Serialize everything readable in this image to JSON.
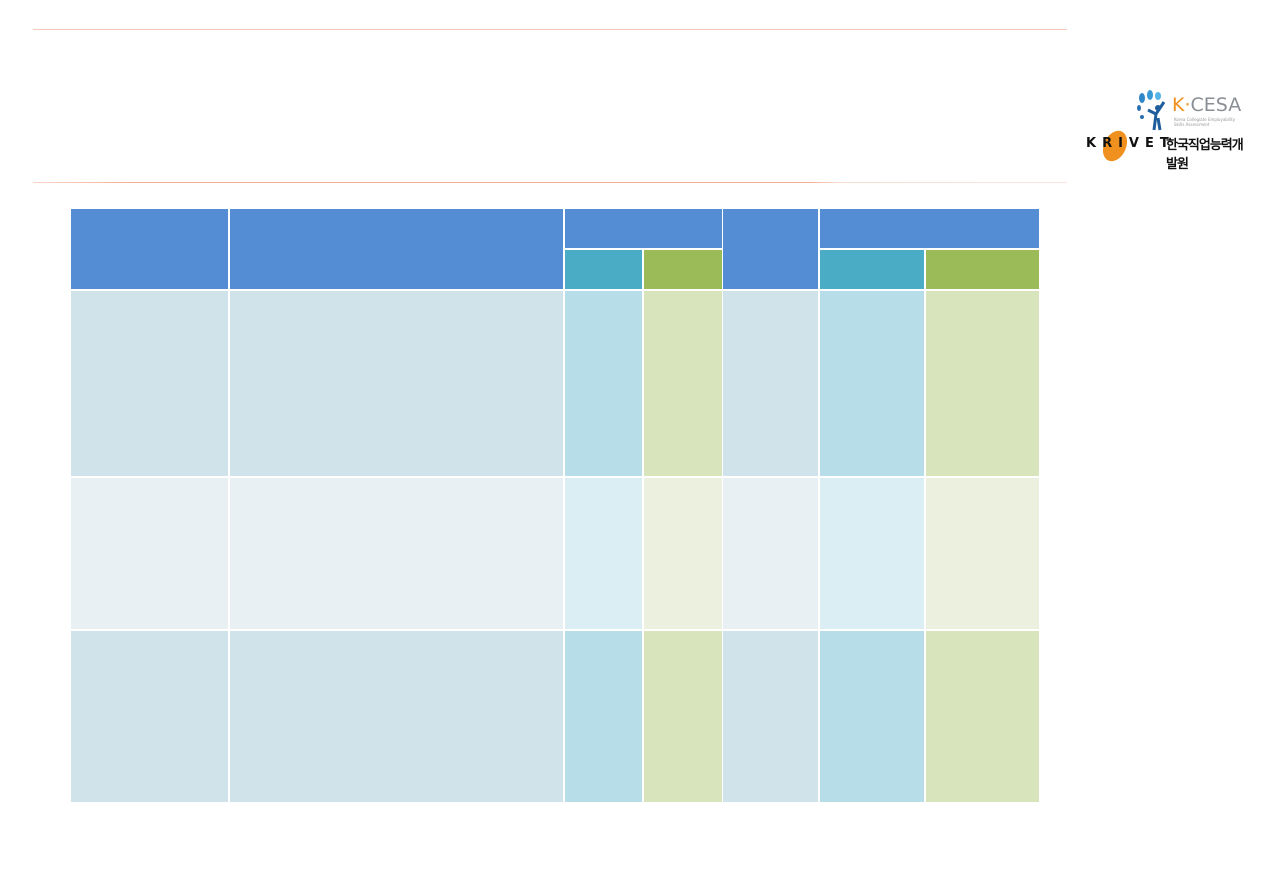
{
  "logo": {
    "kcesa_k": "K",
    "kcesa_rest": "CESA",
    "kcesa_subtitle": "Korea Collegiate Employability Skills Assessment",
    "krivet": "KRIVET",
    "krivet_korean": "한국직업능력개발원"
  },
  "colors": {
    "header": "#548dd4",
    "header_teal": "#4bacc6",
    "header_green": "#9bbb59",
    "accent_rule": "#f4ad95"
  }
}
